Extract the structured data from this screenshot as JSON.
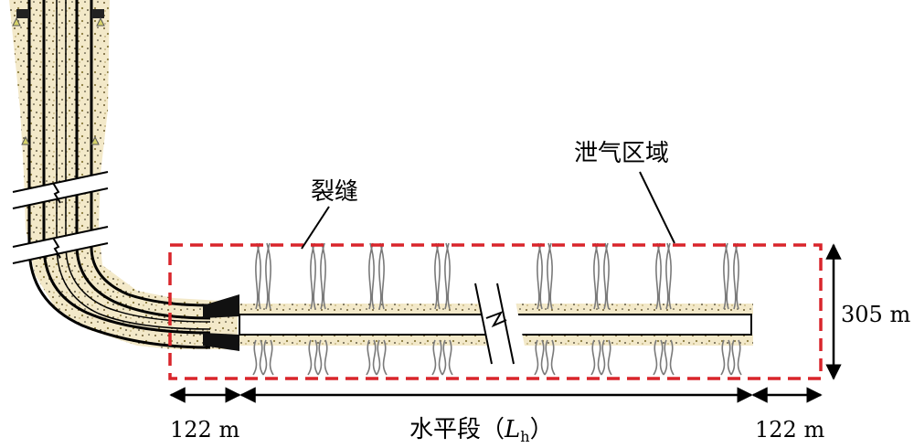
{
  "labels": {
    "fracture": "裂缝",
    "leak_zone": "泄气区域",
    "height": "305 m",
    "left_offset": "122 m",
    "right_offset": "122 m",
    "horizontal_prefix": "水平段（",
    "horizontal_symbol": "L",
    "horizontal_subscript": "h",
    "horizontal_suffix": "）"
  },
  "colors": {
    "dashed_box": "#d9252b",
    "rock": "#e8d9b0",
    "pipe": "#000000",
    "fracture_lines": "#7a7a7a",
    "marker": "#d6d26a"
  },
  "fracture_sets": 8
}
